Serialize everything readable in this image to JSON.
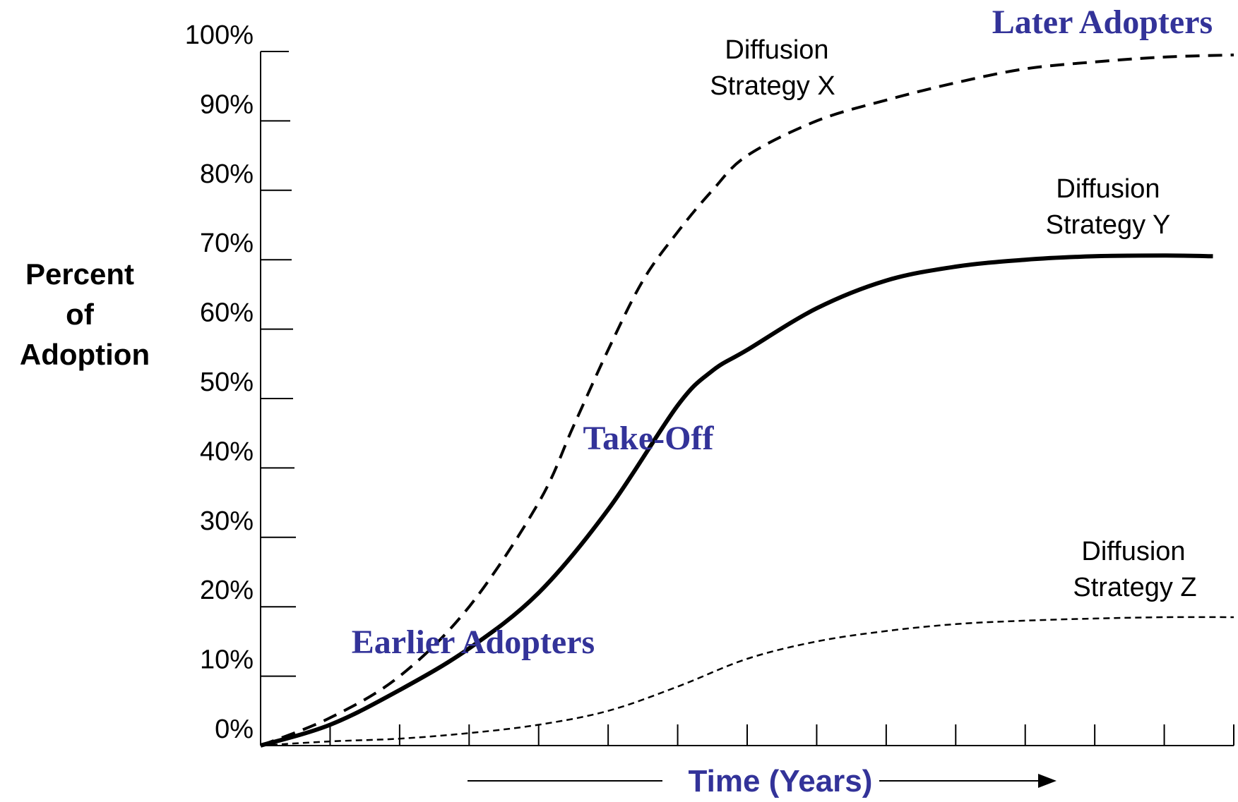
{
  "chart_data": {
    "type": "line",
    "title": "",
    "ylabel_lines": [
      "Percent",
      "of",
      "Adoption"
    ],
    "xlabel": "Time (Years)",
    "ylim": [
      0,
      100
    ],
    "xlim": [
      0,
      14
    ],
    "y_ticks": [
      0,
      10,
      20,
      30,
      40,
      50,
      60,
      70,
      80,
      90,
      100
    ],
    "y_tick_labels": [
      "0%",
      "10%",
      "20%",
      "30%",
      "40%",
      "50%",
      "60%",
      "70%",
      "80%",
      "90%",
      "100%"
    ],
    "x_tick_count": 14,
    "x_tick_labels": [],
    "grid": false,
    "legend": "none",
    "series": [
      {
        "name": "Diffusion Strategy X",
        "label_lines": [
          "Diffusion",
          "Strategy X"
        ],
        "style": "dashed-heavy",
        "x": [
          0,
          1,
          2,
          3,
          4,
          4.5,
          5,
          5.5,
          6,
          6.5,
          7,
          8,
          9,
          10,
          11,
          12,
          13,
          14
        ],
        "y": [
          0,
          4,
          10,
          20,
          35,
          46,
          57,
          67,
          74,
          80,
          85,
          90,
          93,
          95.5,
          97.5,
          98.5,
          99.2,
          99.5
        ]
      },
      {
        "name": "Diffusion Strategy Y",
        "label_lines": [
          "Diffusion",
          "Strategy Y"
        ],
        "style": "solid",
        "x": [
          0,
          1,
          2,
          3,
          4,
          5,
          6,
          6.5,
          7,
          8,
          9,
          10,
          11,
          12,
          13,
          13.7
        ],
        "y": [
          0,
          3,
          8,
          14,
          22,
          34,
          49,
          54,
          57,
          63,
          67,
          69,
          70,
          70.5,
          70.6,
          70.5
        ]
      },
      {
        "name": "Diffusion Strategy Z",
        "label_lines": [
          "Diffusion",
          "Strategy Z"
        ],
        "style": "dashed-light",
        "x": [
          0,
          1,
          2,
          3,
          4,
          5,
          6,
          7,
          8,
          9,
          10,
          11,
          12,
          13,
          14
        ],
        "y": [
          0,
          0.6,
          1,
          1.8,
          3,
          5,
          8.5,
          12.5,
          15,
          16.5,
          17.5,
          18,
          18.3,
          18.5,
          18.5
        ]
      }
    ],
    "annotations": [
      "Earlier Adopters",
      "Take-Off",
      "Later Adopters"
    ]
  }
}
